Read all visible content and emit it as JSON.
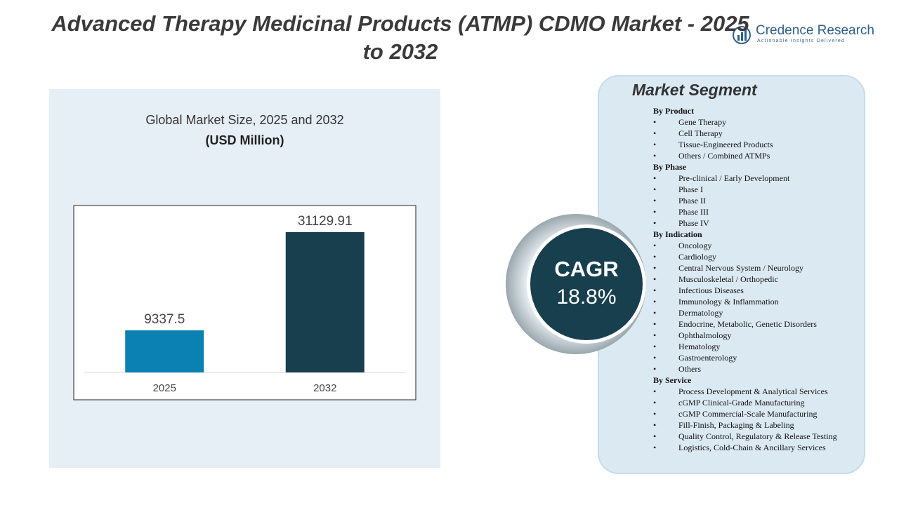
{
  "header": {
    "title": "Advanced Therapy Medicinal Products (ATMP) CDMO Market - 2025 to 2032",
    "brand": "Credence Research",
    "tagline": "Actionable Insights Delivered"
  },
  "chart_data": {
    "type": "bar",
    "title": "Global Market Size, 2025 and 2032",
    "subtitle": "(USD Million)",
    "categories": [
      "2025",
      "2032"
    ],
    "values": [
      9337.5,
      31129.91
    ],
    "colors": [
      "#0b80b3",
      "#183f4e"
    ],
    "ylim": [
      0,
      35000
    ]
  },
  "cagr": {
    "label": "CAGR",
    "value": "18.8%"
  },
  "segments": {
    "title": "Market Segment",
    "groups": [
      {
        "heading": "By Product",
        "items": [
          "Gene Therapy",
          "Cell Therapy",
          "Tissue-Engineered Products",
          "Others / Combined ATMPs"
        ]
      },
      {
        "heading": "By Phase",
        "items": [
          "Pre-clinical / Early Development",
          "Phase I",
          "Phase II",
          "Phase III",
          "Phase IV"
        ]
      },
      {
        "heading": "By Indication",
        "items": [
          "Oncology",
          "Cardiology",
          "Central Nervous System / Neurology",
          "Musculoskeletal / Orthopedic",
          "Infectious Diseases",
          "Immunology & Inflammation",
          "Dermatology",
          "Endocrine, Metabolic, Genetic Disorders",
          "Ophthalmology",
          "Hematology",
          "Gastroenterology",
          "Others"
        ]
      },
      {
        "heading": "By Service",
        "items": [
          "Process Development & Analytical Services",
          "cGMP Clinical-Grade Manufacturing",
          "cGMP Commercial-Scale Manufacturing",
          "Fill-Finish, Packaging & Labeling",
          "Quality Control, Regulatory & Release Testing",
          "Logistics, Cold-Chain & Ancillary Services"
        ]
      }
    ]
  }
}
